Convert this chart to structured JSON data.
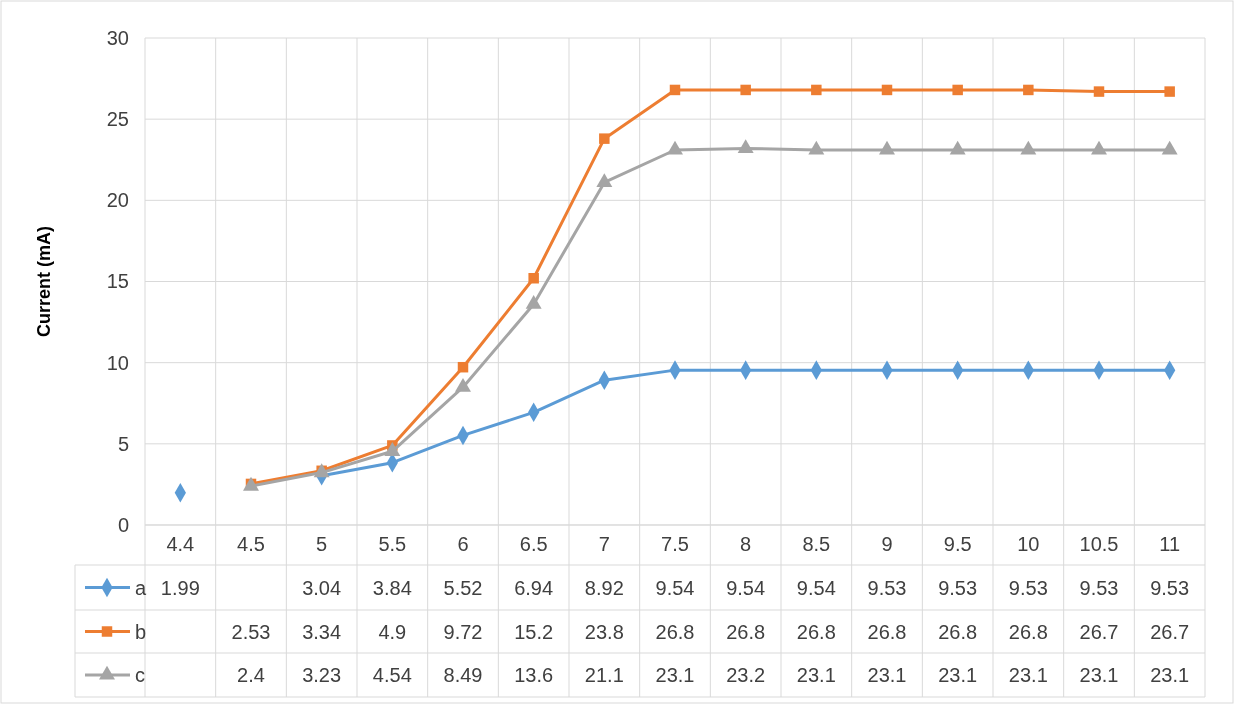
{
  "chart_data": {
    "type": "line",
    "ylabel": "Current (mA)",
    "categories": [
      "4.4",
      "4.5",
      "5",
      "5.5",
      "6",
      "6.5",
      "7",
      "7.5",
      "8",
      "8.5",
      "9",
      "9.5",
      "10",
      "10.5",
      "11"
    ],
    "series": [
      {
        "name": "a",
        "color": "#5b9bd5",
        "marker": "diamond",
        "values": [
          1.99,
          null,
          3.04,
          3.84,
          5.52,
          6.94,
          8.92,
          9.54,
          9.54,
          9.54,
          9.53,
          9.53,
          9.53,
          9.53,
          9.53
        ]
      },
      {
        "name": "b",
        "color": "#ed7d31",
        "marker": "square",
        "values": [
          null,
          2.53,
          3.34,
          4.9,
          9.72,
          15.2,
          23.8,
          26.8,
          26.8,
          26.8,
          26.8,
          26.8,
          26.8,
          26.7,
          26.7
        ]
      },
      {
        "name": "c",
        "color": "#a5a5a5",
        "marker": "triangle",
        "values": [
          null,
          2.4,
          3.23,
          4.54,
          8.49,
          13.6,
          21.1,
          23.1,
          23.2,
          23.1,
          23.1,
          23.1,
          23.1,
          23.1,
          23.1
        ]
      }
    ],
    "ylim": [
      0,
      30
    ],
    "yticks": [
      0,
      5,
      10,
      15,
      20,
      25,
      30
    ],
    "grid": true,
    "legend": "bottom",
    "data_labels": true,
    "line_style": "solid"
  }
}
